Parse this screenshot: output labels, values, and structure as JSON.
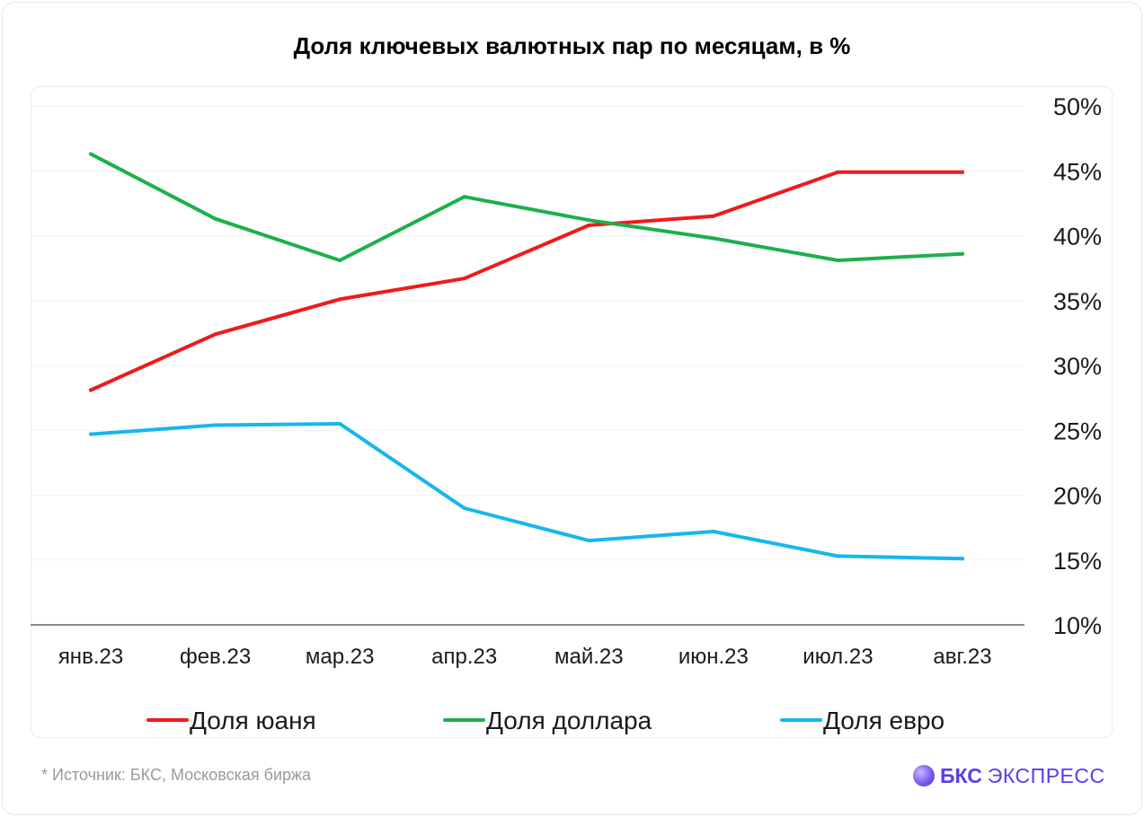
{
  "title": "Доля ключевых валютных пар по месяцам, в %",
  "source": "*  Источник: БКС, Московская биржа",
  "brand": {
    "bold": "БКС",
    "regular": "ЭКСПРЕСС",
    "logo_icon": "sphere-icon"
  },
  "chart_data": {
    "type": "line",
    "title": "Доля ключевых валютных пар по месяцам, в %",
    "categories": [
      "янв.23",
      "фев.23",
      "мар.23",
      "апр.23",
      "май.23",
      "июн.23",
      "июл.23",
      "авг.23"
    ],
    "ylim": [
      10,
      50
    ],
    "yticks": [
      10,
      15,
      20,
      25,
      30,
      35,
      40,
      45,
      50
    ],
    "ytick_labels": [
      "10%",
      "15%",
      "20%",
      "25%",
      "30%",
      "35%",
      "40%",
      "45%",
      "50%"
    ],
    "y_axis_side": "right",
    "grid": true,
    "legend_position": "bottom",
    "series": [
      {
        "name": "Доля юаня",
        "color": "#f01a1a",
        "values": [
          28.1,
          32.4,
          35.1,
          36.7,
          40.8,
          41.5,
          44.9,
          44.9
        ]
      },
      {
        "name": "Доля доллара",
        "color": "#1db04b",
        "values": [
          46.3,
          41.3,
          38.1,
          43.0,
          41.2,
          39.8,
          38.1,
          38.6
        ]
      },
      {
        "name": "Доля евро",
        "color": "#17b6ee",
        "values": [
          24.7,
          25.4,
          25.5,
          19.0,
          16.5,
          17.2,
          15.3,
          15.1
        ]
      }
    ]
  }
}
